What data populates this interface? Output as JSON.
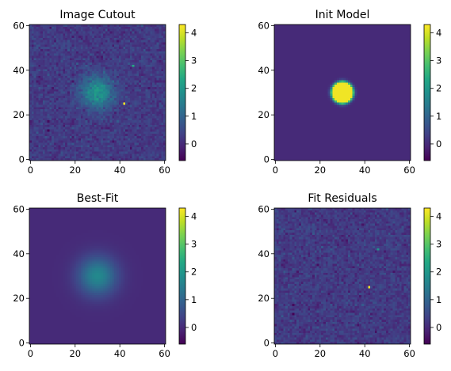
{
  "chart_data": [
    {
      "type": "heatmap",
      "title": "Image Cutout",
      "xlabel": "",
      "ylabel": "",
      "xlim": [
        -0.5,
        60.5
      ],
      "ylim": [
        -0.5,
        60.5
      ],
      "x_ticks": [
        0,
        20,
        40,
        60
      ],
      "y_ticks": [
        0,
        20,
        40,
        60
      ],
      "colorbar": {
        "colormap": "viridis",
        "range": [
          -0.6,
          4.3
        ],
        "ticks": [
          0,
          1,
          2,
          3,
          4
        ]
      },
      "features": [
        {
          "kind": "gaussian",
          "x": 30,
          "y": 30,
          "peak": 1.8,
          "sigma": 5
        },
        {
          "kind": "point",
          "x": 42,
          "y": 25,
          "value": 4.2
        },
        {
          "kind": "point",
          "x": 46,
          "y": 42,
          "value": 2.0
        },
        {
          "kind": "point",
          "x": 8,
          "y": 13,
          "value": -0.6
        }
      ],
      "noise": true
    },
    {
      "type": "heatmap",
      "title": "Init Model",
      "xlabel": "",
      "ylabel": "",
      "xlim": [
        -0.5,
        60.5
      ],
      "ylim": [
        -0.5,
        60.5
      ],
      "x_ticks": [
        0,
        20,
        40,
        60
      ],
      "y_ticks": [
        0,
        20,
        40,
        60
      ],
      "colorbar": {
        "colormap": "viridis",
        "range": [
          -0.6,
          4.3
        ],
        "ticks": [
          0,
          1,
          2,
          3,
          4
        ]
      },
      "features": [
        {
          "kind": "disk",
          "x": 30,
          "y": 30,
          "value": 4.2,
          "radius": 4.3
        }
      ],
      "noise": false
    },
    {
      "type": "heatmap",
      "title": "Best-Fit",
      "xlabel": "",
      "ylabel": "",
      "xlim": [
        -0.5,
        60.5
      ],
      "ylim": [
        -0.5,
        60.5
      ],
      "x_ticks": [
        0,
        20,
        40,
        60
      ],
      "y_ticks": [
        0,
        20,
        40,
        60
      ],
      "colorbar": {
        "colormap": "viridis",
        "range": [
          -0.6,
          4.3
        ],
        "ticks": [
          0,
          1,
          2,
          3,
          4
        ]
      },
      "features": [
        {
          "kind": "gaussian",
          "x": 30,
          "y": 30,
          "peak": 1.7,
          "sigma": 6
        }
      ],
      "noise": false
    },
    {
      "type": "heatmap",
      "title": "Fit Residuals",
      "xlabel": "",
      "ylabel": "",
      "xlim": [
        -0.5,
        60.5
      ],
      "ylim": [
        -0.5,
        60.5
      ],
      "x_ticks": [
        0,
        20,
        40,
        60
      ],
      "y_ticks": [
        0,
        20,
        40,
        60
      ],
      "colorbar": {
        "colormap": "viridis",
        "range": [
          -0.6,
          4.3
        ],
        "ticks": [
          0,
          1,
          2,
          3,
          4
        ]
      },
      "features": [
        {
          "kind": "point",
          "x": 42,
          "y": 25,
          "value": 4.0
        },
        {
          "kind": "point",
          "x": 46,
          "y": 42,
          "value": 1.6
        },
        {
          "kind": "point",
          "x": 8,
          "y": 13,
          "value": -0.6
        }
      ],
      "noise": true
    }
  ]
}
